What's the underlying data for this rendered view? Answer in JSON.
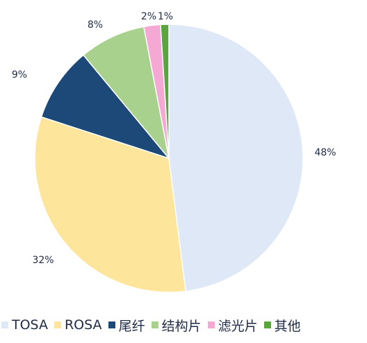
{
  "chart_data": {
    "type": "pie",
    "categories": [
      "TOSA",
      "ROSA",
      "尾纤",
      "结构片",
      "滤光片",
      "其他"
    ],
    "values": [
      48,
      32,
      9,
      8,
      2,
      1
    ],
    "data_labels": [
      "48%",
      "32%",
      "9%",
      "8%",
      "2%",
      "1%"
    ],
    "colors": [
      "#dfe8f6",
      "#fde59c",
      "#1d4978",
      "#a9d18e",
      "#f6a8d4",
      "#5aa63c"
    ],
    "legend_position": "bottom",
    "start_angle_deg": 0,
    "direction": "clockwise"
  }
}
